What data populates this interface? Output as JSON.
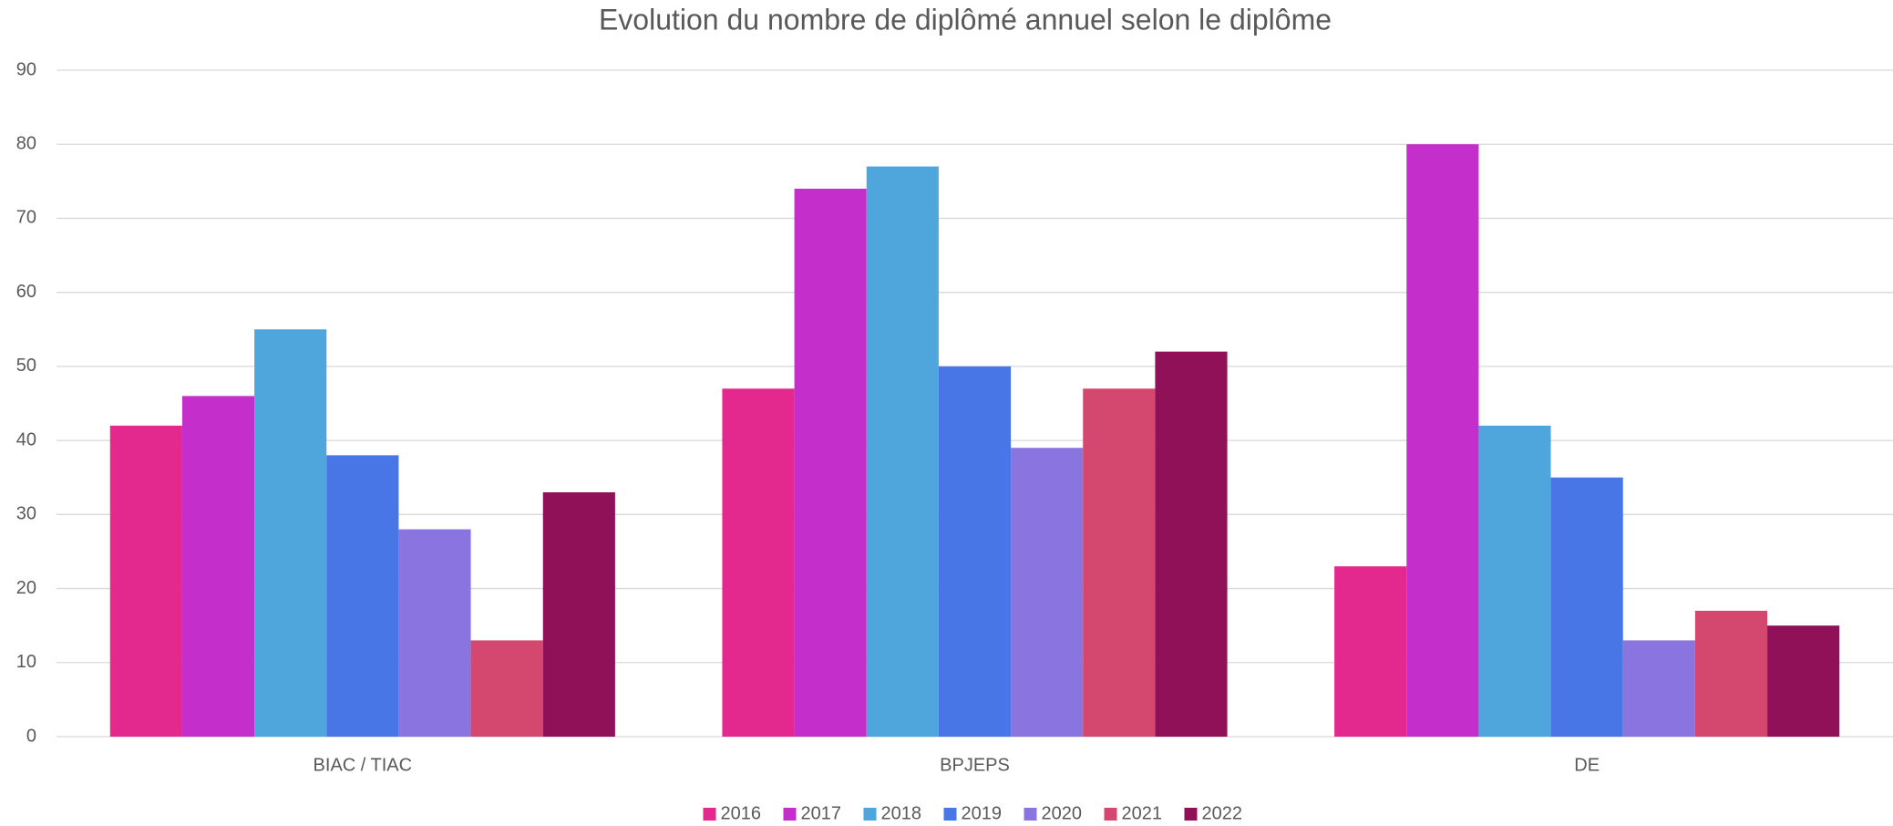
{
  "chart_data": {
    "type": "bar",
    "title": "Evolution du nombre de diplômé annuel selon le diplôme",
    "categories": [
      "BIAC / TIAC",
      "BPJEPS",
      "DE"
    ],
    "series": [
      {
        "name": "2016",
        "color": "#e3298e",
        "values": [
          42,
          47,
          23
        ]
      },
      {
        "name": "2017",
        "color": "#c42fcb",
        "values": [
          46,
          74,
          80
        ]
      },
      {
        "name": "2018",
        "color": "#4fa6dd",
        "values": [
          55,
          77,
          42
        ]
      },
      {
        "name": "2019",
        "color": "#4976e6",
        "values": [
          38,
          50,
          35
        ]
      },
      {
        "name": "2020",
        "color": "#8a74e0",
        "values": [
          28,
          39,
          13
        ]
      },
      {
        "name": "2021",
        "color": "#d4476e",
        "values": [
          13,
          47,
          17
        ]
      },
      {
        "name": "2022",
        "color": "#901157",
        "values": [
          33,
          52,
          15
        ]
      }
    ],
    "ylim": [
      0,
      90
    ],
    "yticks": [
      0,
      10,
      20,
      30,
      40,
      50,
      60,
      70,
      80,
      90
    ],
    "grid": true,
    "legend": "bottom"
  }
}
